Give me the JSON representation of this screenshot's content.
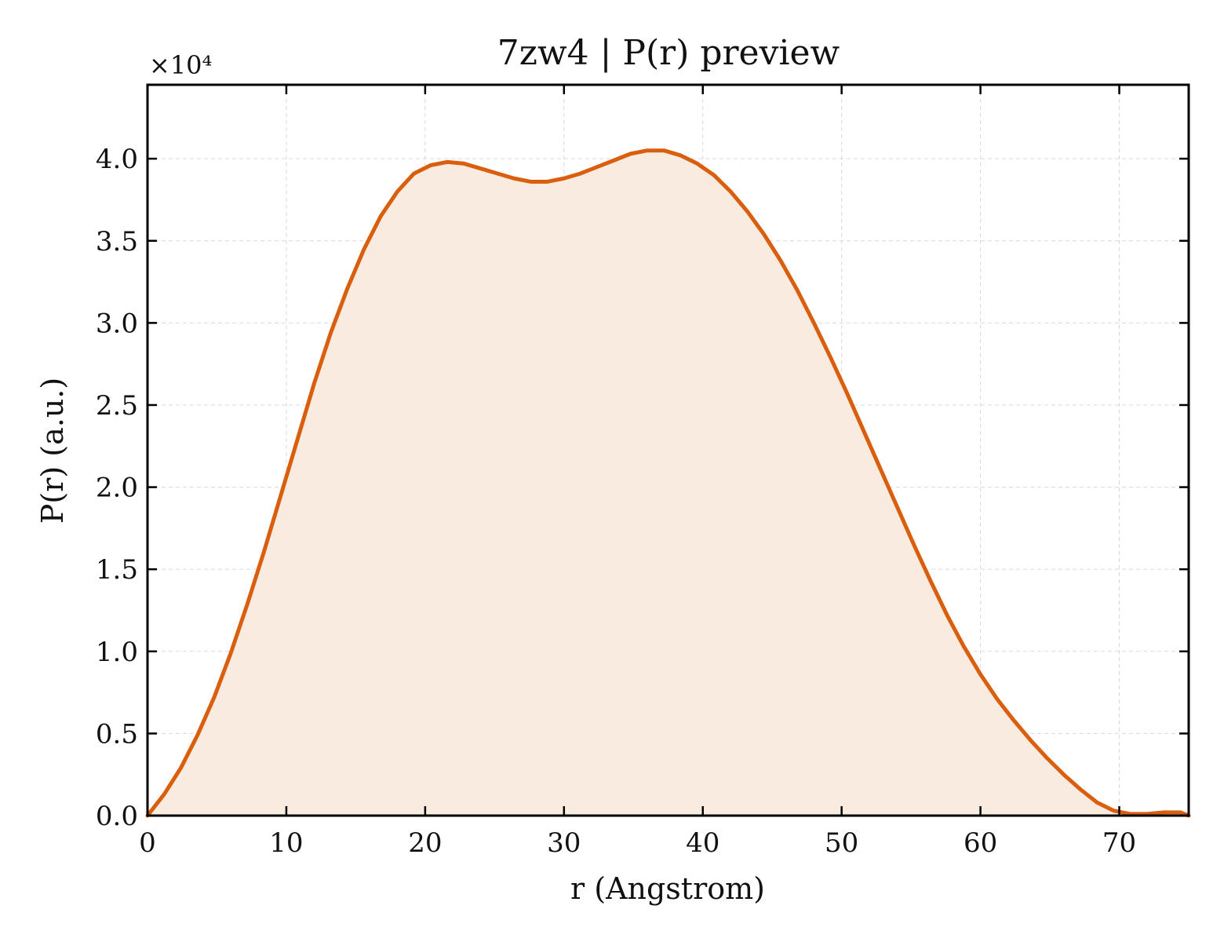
{
  "chart_data": {
    "type": "area",
    "title": "7zw4 | P(r) preview",
    "xlabel": "r (Angstrom)",
    "ylabel": "P(r) (a.u.)",
    "y_offset_label": "×10⁴",
    "y_multiplier": 10000,
    "xlim": [
      0,
      75
    ],
    "ylim": [
      0,
      4.45
    ],
    "x_ticks": [
      0,
      10,
      20,
      30,
      40,
      50,
      60,
      70
    ],
    "x_tick_labels": [
      "0",
      "10",
      "20",
      "30",
      "40",
      "50",
      "60",
      "70"
    ],
    "y_ticks": [
      0,
      0.5,
      1.0,
      1.5,
      2.0,
      2.5,
      3.0,
      3.5,
      4.0
    ],
    "y_tick_labels": [
      "0.0",
      "0.5",
      "1.0",
      "1.5",
      "2.0",
      "2.5",
      "3.0",
      "3.5",
      "4.0"
    ],
    "grid": true,
    "legend": "none",
    "series": [
      {
        "x": [
          0,
          1.2,
          2.4,
          3.6,
          4.8,
          6.0,
          7.2,
          8.4,
          9.6,
          10.8,
          12.0,
          13.2,
          14.4,
          15.6,
          16.8,
          18.0,
          19.2,
          20.4,
          21.6,
          22.8,
          24.0,
          25.2,
          26.4,
          27.6,
          28.8,
          30.0,
          31.2,
          32.4,
          33.6,
          34.8,
          36.0,
          37.2,
          38.4,
          39.6,
          40.8,
          42.0,
          43.2,
          44.4,
          45.6,
          46.8,
          48.0,
          49.2,
          50.4,
          51.6,
          52.8,
          54.0,
          55.2,
          56.4,
          57.6,
          58.8,
          60.0,
          61.2,
          62.4,
          63.6,
          64.8,
          66.0,
          67.2,
          68.4,
          69.6,
          70.8,
          72.0,
          73.2,
          74.4,
          75.0
        ],
        "y": [
          0.0,
          0.13,
          0.29,
          0.49,
          0.72,
          0.99,
          1.29,
          1.61,
          1.95,
          2.29,
          2.63,
          2.94,
          3.21,
          3.45,
          3.65,
          3.8,
          3.91,
          3.96,
          3.98,
          3.97,
          3.94,
          3.91,
          3.88,
          3.86,
          3.86,
          3.88,
          3.91,
          3.95,
          3.99,
          4.03,
          4.05,
          4.05,
          4.02,
          3.97,
          3.9,
          3.8,
          3.68,
          3.54,
          3.38,
          3.2,
          3.0,
          2.79,
          2.57,
          2.34,
          2.11,
          1.88,
          1.65,
          1.43,
          1.22,
          1.03,
          0.86,
          0.71,
          0.58,
          0.46,
          0.35,
          0.25,
          0.16,
          0.08,
          0.03,
          0.01,
          0.01,
          0.02,
          0.02,
          0.0
        ]
      }
    ],
    "colors": {
      "line": "#d95f0e",
      "fill": "#f9ebe0",
      "grid": "#d9d9d9",
      "axes": "#000000"
    }
  }
}
